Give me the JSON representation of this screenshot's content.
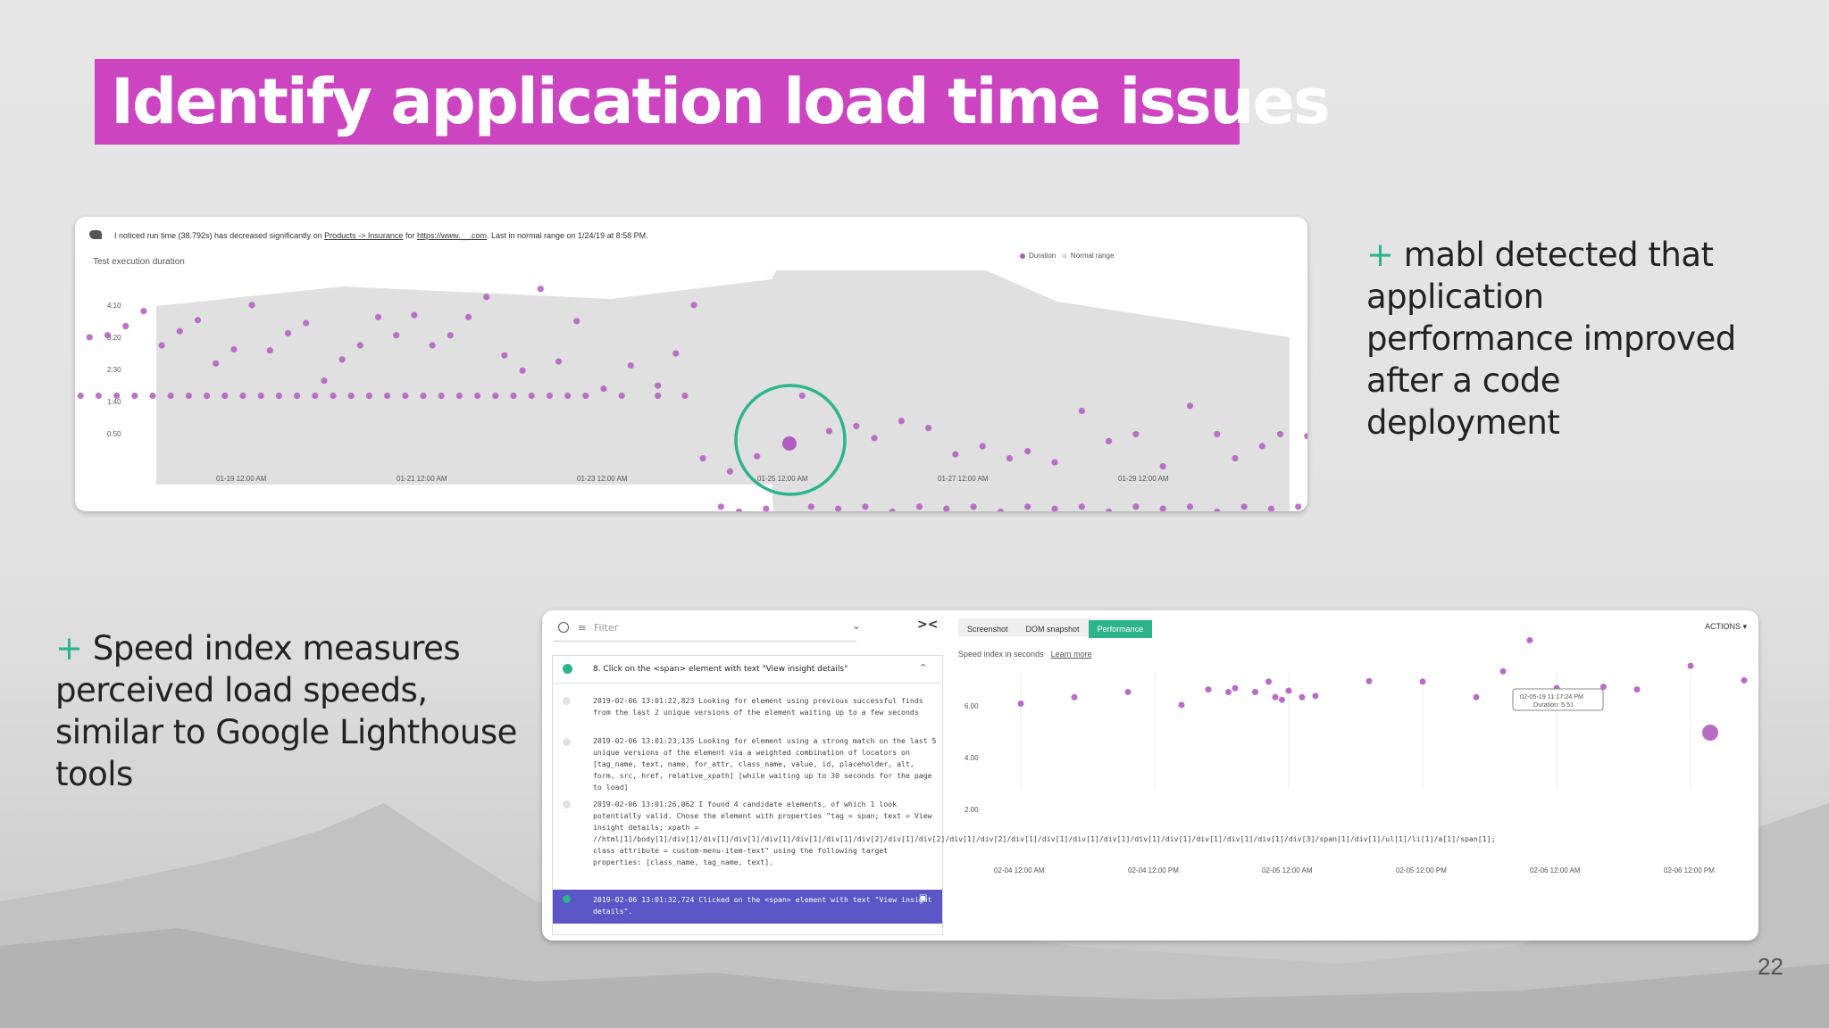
{
  "slide": {
    "title": "Identify application load time issues",
    "bullets": [
      {
        "plus": "+",
        "text": " mabl detected that application performance improved after a code deployment"
      },
      {
        "plus": "+",
        "text": " Speed index measures perceived load speeds, similar to Google Lighthouse tools"
      }
    ],
    "page_number": "22"
  },
  "insight": {
    "notice_prefix": "I noticed run time (38.792s) has decreased significantly on ",
    "notice_link1": "Products -> Insurance",
    "notice_mid": " for ",
    "notice_link2": "https://www.__.com",
    "notice_suffix": ". Last in normal range on 1/24/19 at 8:58 PM."
  },
  "colors": {
    "accent": "#cc44c0",
    "plus": "#2db48b",
    "point": "#b05cc0",
    "band": "#dedede",
    "highlight": "#2db48b",
    "selected_row": "#5a56c8"
  },
  "chart_data": [
    {
      "type": "scatter",
      "title": "Test execution duration",
      "legend": [
        "Duration",
        "Normal range"
      ],
      "legend_position": "top-right",
      "y_ticks": [
        "4:10",
        "3:20",
        "2:30",
        "1:40",
        "0:50"
      ],
      "x_ticks": [
        "01-19 12:00 AM",
        "01-21 12:00 AM",
        "01-23 12:00 AM",
        "01-25 12:00 AM",
        "01-27 12:00 AM",
        "01-29 12:00 AM"
      ],
      "y_unit": "seconds",
      "ylim": [
        0,
        280
      ],
      "grid": false,
      "series": [
        {
          "name": "Duration",
          "points": [
            [
              -1.9,
              150
            ],
            [
              -1.7,
              208
            ],
            [
              -1.5,
              210
            ],
            [
              -1.3,
              219
            ],
            [
              -1.1,
              234
            ],
            [
              -0.9,
              200
            ],
            [
              -0.7,
              214
            ],
            [
              -0.5,
              225
            ],
            [
              -0.3,
              182
            ],
            [
              -0.1,
              196
            ],
            [
              0.1,
              240
            ],
            [
              0.3,
              195
            ],
            [
              0.5,
              212
            ],
            [
              0.7,
              222
            ],
            [
              0.9,
              165
            ],
            [
              1.1,
              186
            ],
            [
              1.3,
              200
            ],
            [
              1.5,
              228
            ],
            [
              1.7,
              210
            ],
            [
              1.9,
              230
            ],
            [
              2.1,
              200
            ],
            [
              2.3,
              210
            ],
            [
              2.5,
              228
            ],
            [
              2.7,
              248
            ],
            [
              2.9,
              190
            ],
            [
              3.1,
              175
            ],
            [
              3.3,
              256
            ],
            [
              3.5,
              184
            ],
            [
              3.7,
              224
            ],
            [
              4.0,
              157
            ],
            [
              4.3,
              180
            ],
            [
              4.6,
              160
            ],
            [
              4.8,
              192
            ],
            [
              5.0,
              240
            ],
            [
              -2.0,
              150
            ],
            [
              -1.8,
              150
            ],
            [
              -1.6,
              150
            ],
            [
              -1.4,
              150
            ],
            [
              -1.2,
              150
            ],
            [
              -1.0,
              150
            ],
            [
              -0.8,
              150
            ],
            [
              -0.6,
              150
            ],
            [
              -0.4,
              150
            ],
            [
              -0.2,
              150
            ],
            [
              0.0,
              150
            ],
            [
              0.2,
              150
            ],
            [
              0.4,
              150
            ],
            [
              0.6,
              150
            ],
            [
              0.8,
              150
            ],
            [
              1.0,
              150
            ],
            [
              1.2,
              150
            ],
            [
              1.4,
              150
            ],
            [
              1.6,
              150
            ],
            [
              1.8,
              150
            ],
            [
              2.0,
              150
            ],
            [
              2.2,
              150
            ],
            [
              2.4,
              150
            ],
            [
              2.6,
              150
            ],
            [
              2.8,
              150
            ],
            [
              3.0,
              150
            ],
            [
              3.2,
              150
            ],
            [
              3.4,
              150
            ],
            [
              3.6,
              150
            ],
            [
              3.8,
              150
            ],
            [
              4.2,
              150
            ],
            [
              4.6,
              150
            ],
            [
              4.9,
              150
            ],
            [
              6.2,
              150
            ],
            [
              6.5,
              115
            ],
            [
              6.8,
              120
            ],
            [
              7.0,
              108
            ],
            [
              7.3,
              125
            ],
            [
              7.6,
              118
            ],
            [
              7.9,
              92
            ],
            [
              8.2,
              100
            ],
            [
              8.5,
              88
            ],
            [
              8.7,
              95
            ],
            [
              9.0,
              84
            ],
            [
              9.3,
              135
            ],
            [
              9.6,
              105
            ],
            [
              9.9,
              112
            ],
            [
              10.2,
              80
            ],
            [
              10.5,
              140
            ],
            [
              10.8,
              112
            ],
            [
              11.0,
              88
            ],
            [
              11.3,
              100
            ],
            [
              11.5,
              112
            ],
            [
              11.8,
              110
            ],
            [
              5.3,
              40
            ],
            [
              5.5,
              35
            ],
            [
              5.8,
              38
            ],
            [
              6.0,
              30
            ],
            [
              6.3,
              40
            ],
            [
              6.6,
              38
            ],
            [
              6.9,
              40
            ],
            [
              7.2,
              35
            ],
            [
              7.5,
              40
            ],
            [
              7.8,
              38
            ],
            [
              8.1,
              40
            ],
            [
              8.4,
              35
            ],
            [
              8.7,
              40
            ],
            [
              9.0,
              38
            ],
            [
              9.3,
              40
            ],
            [
              9.6,
              35
            ],
            [
              9.9,
              40
            ],
            [
              10.2,
              38
            ],
            [
              10.5,
              40
            ],
            [
              10.8,
              35
            ],
            [
              11.1,
              40
            ],
            [
              11.4,
              38
            ],
            [
              11.7,
              40
            ],
            [
              12.0,
              36
            ],
            [
              12.2,
              50
            ],
            [
              5.1,
              88
            ],
            [
              5.4,
              75
            ],
            [
              5.7,
              90
            ]
          ]
        }
      ]
    },
    {
      "type": "scatter",
      "title": "Speed index in seconds",
      "y_ticks": [
        "6.00",
        "4.00",
        "2.00"
      ],
      "x_ticks": [
        "02-04 12:00 AM",
        "02-04 12:00 PM",
        "02-05 12:00 AM",
        "02-05 12:00 PM",
        "02-06 12:00 AM",
        "02-06 12:00 PM"
      ],
      "ylim": [
        0,
        7.2
      ],
      "grid": true,
      "tooltip": {
        "label": "02-05-19 11:17:24 PM",
        "value_text": "Duration: 5.51"
      },
      "series": [
        {
          "name": "Speed index",
          "points": [
            [
              0.0,
              4.05
            ],
            [
              0.4,
              4.3
            ],
            [
              0.8,
              4.5
            ],
            [
              1.2,
              4.0
            ],
            [
              1.4,
              4.6
            ],
            [
              1.55,
              4.5
            ],
            [
              1.6,
              4.65
            ],
            [
              1.75,
              4.5
            ],
            [
              1.85,
              4.9
            ],
            [
              1.9,
              4.3
            ],
            [
              1.95,
              4.2
            ],
            [
              2.0,
              4.55
            ],
            [
              2.1,
              4.3
            ],
            [
              2.2,
              4.35
            ],
            [
              2.6,
              4.92
            ],
            [
              3.0,
              4.9
            ],
            [
              3.4,
              4.3
            ],
            [
              3.6,
              5.3
            ],
            [
              3.8,
              6.5
            ],
            [
              4.0,
              4.65
            ],
            [
              4.15,
              4.5
            ],
            [
              4.2,
              4.3
            ],
            [
              4.3,
              4.45
            ],
            [
              4.35,
              4.7
            ],
            [
              4.6,
              4.6
            ],
            [
              5.0,
              5.51
            ],
            [
              5.4,
              4.95
            ],
            [
              5.8,
              5.05
            ],
            [
              6.2,
              4.5
            ],
            [
              6.35,
              4.9
            ]
          ]
        }
      ]
    }
  ],
  "testrun": {
    "filter_placeholder": "Filter",
    "collapse_label": "><",
    "tabs": [
      "Screenshot",
      "DOM snapshot",
      "Performance"
    ],
    "active_tab": "Performance",
    "actions_label": "ACTIONS ▾",
    "learn_more": "Learn more",
    "step_title": "8. Click on the <span> element with text \"View insight details\"",
    "logs": [
      "2019-02-06 13:01:22,823 Looking for element using previous successful finds from the last 2 unique versions of the element waiting up to a few seconds",
      "2019-02-06 13:01:23,135 Looking for element using a strong match on the last 5 unique versions of the element via a weighted combination of locators on [tag_name, text, name, for_attr, class_name, value, id, placeholder, alt, form, src, href, relative_xpath] [while waiting up to 30 seconds for the page to load]",
      "2019-02-06 13:01:26,062 I found 4 candidate elements, of which 1 look potentially valid. Chose the element with properties \"tag = span; text = View insight details; xpath = //html[1]/body[1]/div[1]/div[1]/div[1]/div[1]/div[1]/div[1]/div[2]/div[1]/div[2]/div[1]/div[2]/div[1]/div[1]/div[1]/div[1]/div[1]/div[1]/div[1]/div[1]/div[1]/div[3]/span[1]/div[1]/ul[1]/li[1]/a[1]/span[1]; class attribute = custom-menu-item-text\" using the following target properties: [class_name, tag_name, text].",
      "2019-02-06 13:01:32,724 Clicked on the <span> element with text \"View insight details\"."
    ]
  }
}
